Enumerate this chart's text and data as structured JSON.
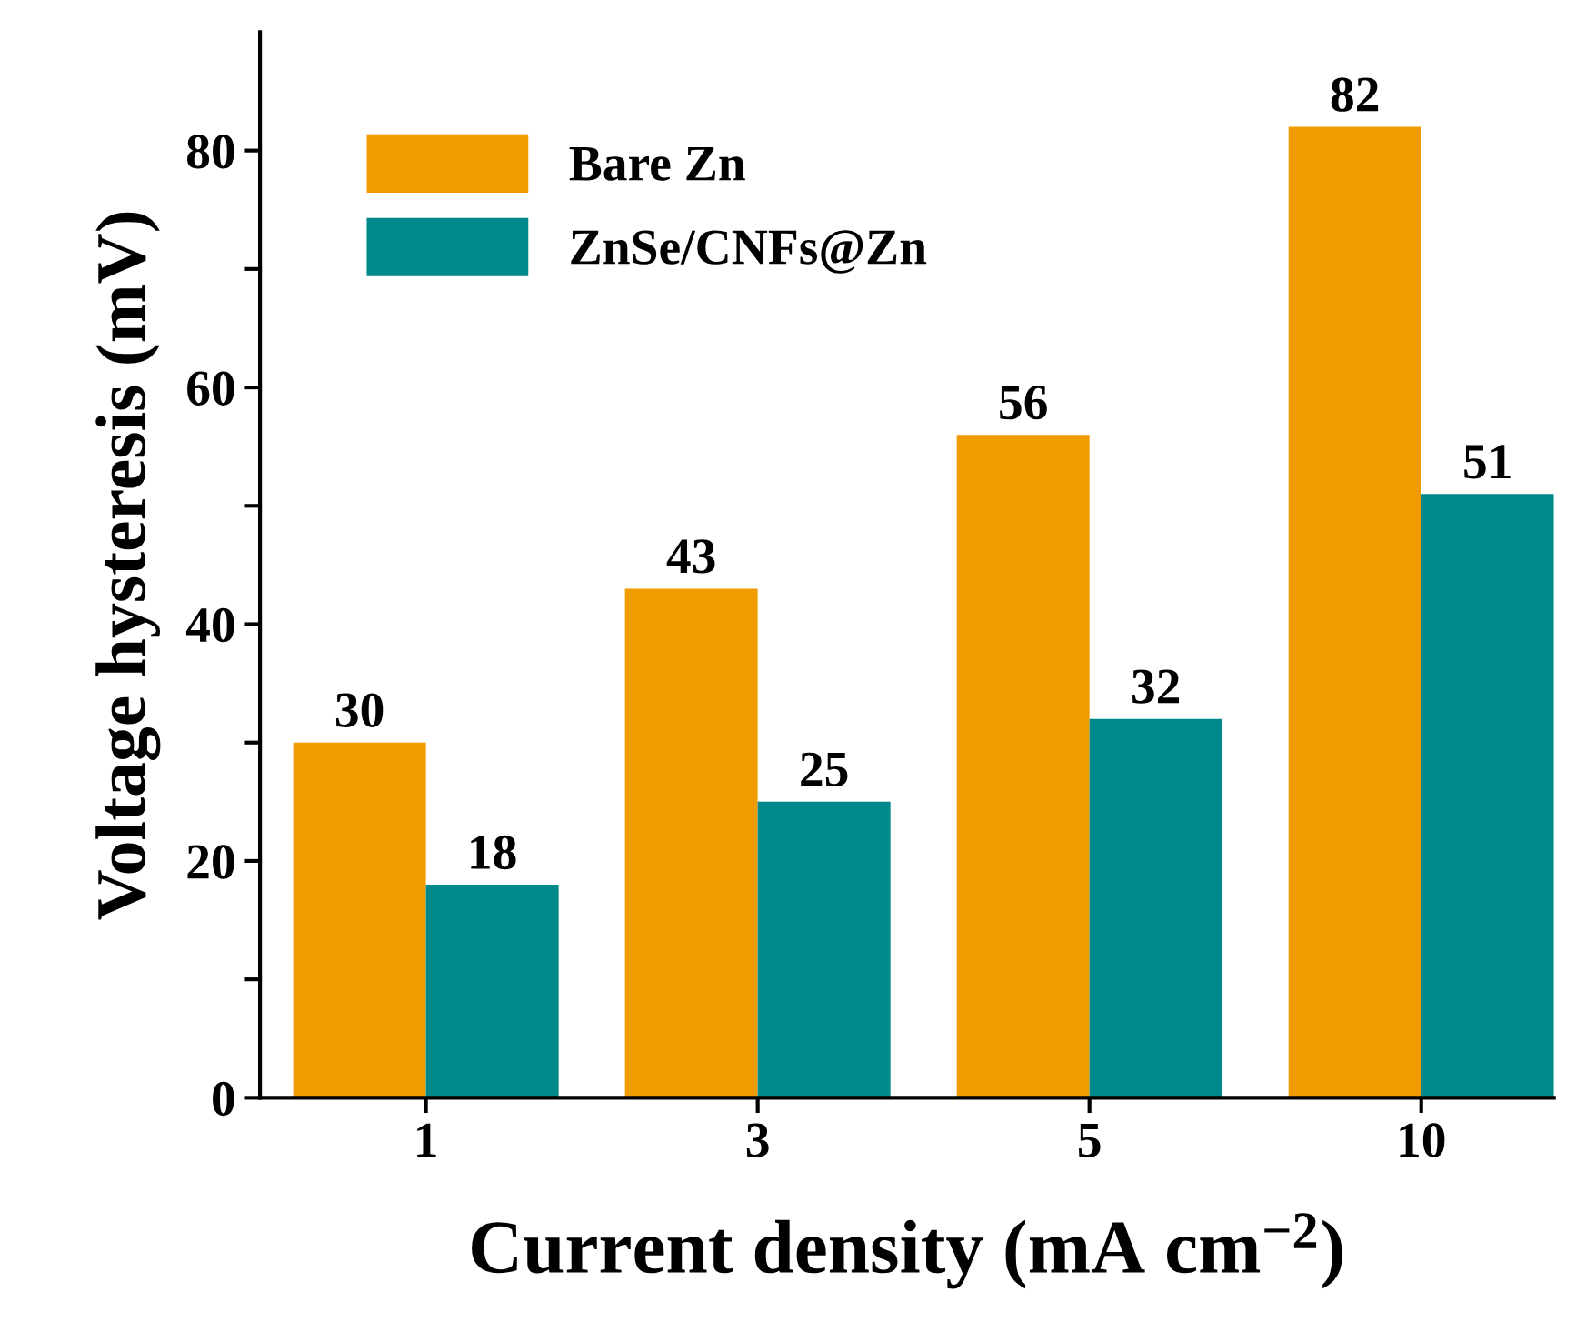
{
  "chart_data": {
    "type": "bar",
    "xlabel": "Current density (mA cm$^{−2}$)",
    "ylabel": "Voltage hysteresis (mV)",
    "categories": [
      "1",
      "3",
      "5",
      "10"
    ],
    "series": [
      {
        "name": "Bare Zn",
        "color": "#f09c00",
        "values": [
          30,
          43,
          56,
          82
        ]
      },
      {
        "name": "ZnSe/CNFs@Zn",
        "color": "#00898a",
        "values": [
          18,
          25,
          32,
          51
        ]
      }
    ],
    "ylim": [
      0,
      90
    ],
    "yticks": [
      0,
      {
        "value": 10,
        "label": null
      },
      20,
      {
        "value": 30,
        "label": null
      },
      40,
      {
        "value": 50,
        "label": null
      },
      60,
      {
        "value": 70,
        "label": null
      },
      80
    ],
    "data_labels": true,
    "grid": false,
    "legend": "top left"
  }
}
